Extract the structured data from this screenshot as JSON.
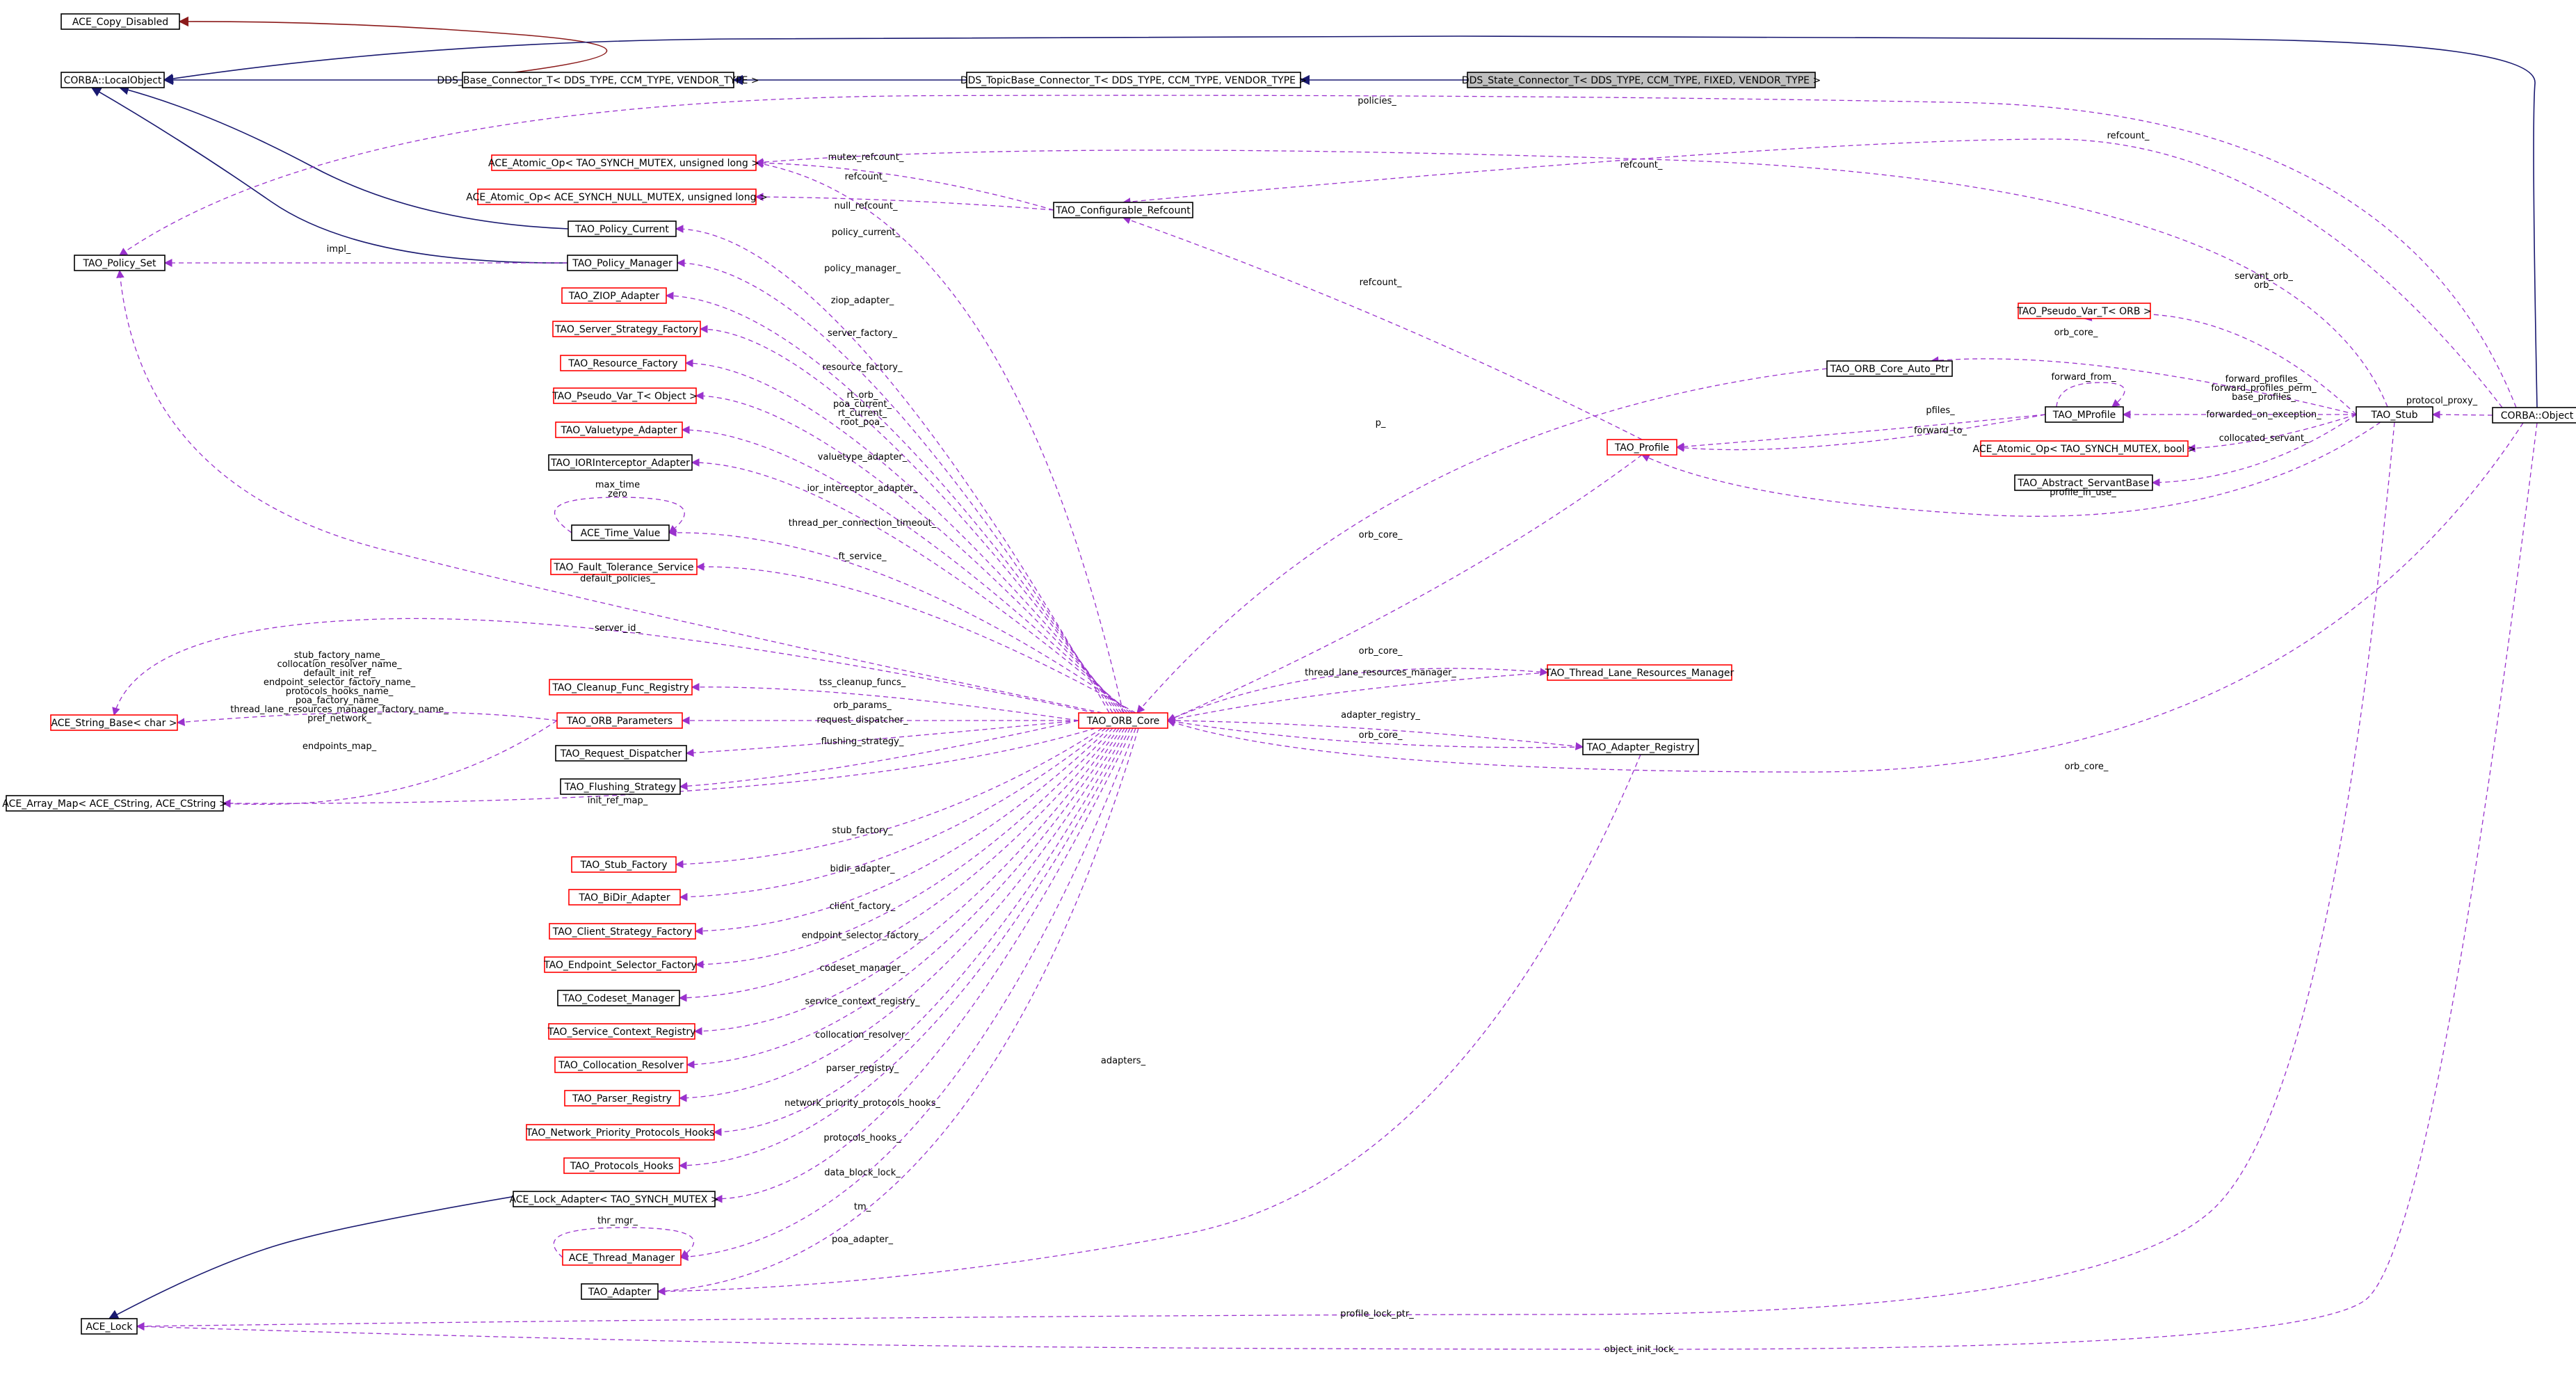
{
  "colors": {
    "usage_edge": "#9a32cd",
    "inherit_edge": "#191970",
    "private_edge": "#8b1a1a",
    "incomplete_node_border": "#ff0000",
    "root_node_fill": "#bfbfbf"
  },
  "nodes": [
    {
      "id": "ace_copy_disabled",
      "label": "ACE_Copy_Disabled",
      "style": "normal"
    },
    {
      "id": "corba_localobject",
      "label": "CORBA::LocalObject",
      "style": "normal"
    },
    {
      "id": "dds_base_connector",
      "label": "DDS_Base_Connector_T< DDS_TYPE, CCM_TYPE, VENDOR_TYPE >",
      "style": "normal"
    },
    {
      "id": "dds_topicbase_connector",
      "label": "DDS_TopicBase_Connector_T< DDS_TYPE, CCM_TYPE, VENDOR_TYPE >",
      "style": "normal"
    },
    {
      "id": "dds_state_connector",
      "label": "DDS_State_Connector_T< DDS_TYPE, CCM_TYPE, FIXED, VENDOR_TYPE >",
      "style": "root"
    },
    {
      "id": "ace_atomic_op_mutex_ulong",
      "label": "ACE_Atomic_Op< TAO_SYNCH_MUTEX, unsigned long >",
      "style": "red"
    },
    {
      "id": "ace_atomic_op_null_mutex",
      "label": "ACE_Atomic_Op< ACE_SYNCH_NULL_MUTEX, unsigned long >",
      "style": "red"
    },
    {
      "id": "tao_configurable_refcount",
      "label": "TAO_Configurable_Refcount",
      "style": "normal"
    },
    {
      "id": "tao_policy_current",
      "label": "TAO_Policy_Current",
      "style": "normal"
    },
    {
      "id": "tao_policy_set",
      "label": "TAO_Policy_Set",
      "style": "normal"
    },
    {
      "id": "tao_policy_manager",
      "label": "TAO_Policy_Manager",
      "style": "normal"
    },
    {
      "id": "tao_ziop_adapter",
      "label": "TAO_ZIOP_Adapter",
      "style": "red"
    },
    {
      "id": "tao_server_strategy_factory",
      "label": "TAO_Server_Strategy_Factory",
      "style": "red"
    },
    {
      "id": "tao_resource_factory",
      "label": "TAO_Resource_Factory",
      "style": "red"
    },
    {
      "id": "tao_pseudo_var_object",
      "label": "TAO_Pseudo_Var_T< Object >",
      "style": "red"
    },
    {
      "id": "tao_valuetype_adapter",
      "label": "TAO_Valuetype_Adapter",
      "style": "red"
    },
    {
      "id": "tao_iorinterceptor_adapter",
      "label": "TAO_IORInterceptor_Adapter",
      "style": "normal"
    },
    {
      "id": "ace_time_value",
      "label": "ACE_Time_Value",
      "style": "normal"
    },
    {
      "id": "tao_fault_tolerance_service",
      "label": "TAO_Fault_Tolerance_Service",
      "style": "red"
    },
    {
      "id": "ace_string_base",
      "label": "ACE_String_Base< char >",
      "style": "red"
    },
    {
      "id": "tao_cleanup_func_registry",
      "label": "TAO_Cleanup_Func_Registry",
      "style": "red"
    },
    {
      "id": "tao_orb_parameters",
      "label": "TAO_ORB_Parameters",
      "style": "red"
    },
    {
      "id": "tao_request_dispatcher",
      "label": "TAO_Request_Dispatcher",
      "style": "normal"
    },
    {
      "id": "tao_flushing_strategy",
      "label": "TAO_Flushing_Strategy",
      "style": "normal"
    },
    {
      "id": "ace_array_map",
      "label": "ACE_Array_Map< ACE_CString, ACE_CString >",
      "style": "normal"
    },
    {
      "id": "tao_stub_factory",
      "label": "TAO_Stub_Factory",
      "style": "red"
    },
    {
      "id": "tao_bidir_adapter",
      "label": "TAO_BiDir_Adapter",
      "style": "red"
    },
    {
      "id": "tao_client_strategy_factory",
      "label": "TAO_Client_Strategy_Factory",
      "style": "red"
    },
    {
      "id": "tao_endpoint_selector_factory",
      "label": "TAO_Endpoint_Selector_Factory",
      "style": "red"
    },
    {
      "id": "tao_codeset_manager",
      "label": "TAO_Codeset_Manager",
      "style": "normal"
    },
    {
      "id": "tao_service_context_registry",
      "label": "TAO_Service_Context_Registry",
      "style": "red"
    },
    {
      "id": "tao_collocation_resolver",
      "label": "TAO_Collocation_Resolver",
      "style": "red"
    },
    {
      "id": "tao_parser_registry",
      "label": "TAO_Parser_Registry",
      "style": "red"
    },
    {
      "id": "tao_network_priority_protocols_hooks",
      "label": "TAO_Network_Priority_Protocols_Hooks",
      "style": "red"
    },
    {
      "id": "tao_protocols_hooks",
      "label": "TAO_Protocols_Hooks",
      "style": "red"
    },
    {
      "id": "ace_lock_adapter",
      "label": "ACE_Lock_Adapter< TAO_SYNCH_MUTEX >",
      "style": "normal"
    },
    {
      "id": "ace_thread_manager",
      "label": "ACE_Thread_Manager",
      "style": "red"
    },
    {
      "id": "tao_adapter",
      "label": "TAO_Adapter",
      "style": "normal"
    },
    {
      "id": "ace_lock",
      "label": "ACE_Lock",
      "style": "normal"
    },
    {
      "id": "tao_orb_core",
      "label": "TAO_ORB_Core",
      "style": "red"
    },
    {
      "id": "tao_orb_core_auto_ptr",
      "label": "TAO_ORB_Core_Auto_Ptr",
      "style": "normal"
    },
    {
      "id": "tao_profile",
      "label": "TAO_Profile",
      "style": "red"
    },
    {
      "id": "tao_mprofile",
      "label": "TAO_MProfile",
      "style": "normal"
    },
    {
      "id": "tao_pseudo_var_orb",
      "label": "TAO_Pseudo_Var_T< ORB >",
      "style": "red"
    },
    {
      "id": "ace_atomic_op_mutex_bool",
      "label": "ACE_Atomic_Op< TAO_SYNCH_MUTEX, bool >",
      "style": "red"
    },
    {
      "id": "tao_abstract_servantbase",
      "label": "TAO_Abstract_ServantBase",
      "style": "normal"
    },
    {
      "id": "tao_stub",
      "label": "TAO_Stub",
      "style": "normal"
    },
    {
      "id": "corba_object",
      "label": "CORBA::Object",
      "style": "normal"
    },
    {
      "id": "tao_thread_lane_resources_manager",
      "label": "TAO_Thread_Lane_Resources_Manager",
      "style": "red"
    },
    {
      "id": "tao_adapter_registry",
      "label": "TAO_Adapter_Registry",
      "style": "normal"
    }
  ],
  "edge_labels": [
    {
      "id": "policies",
      "lines": [
        "policies_"
      ]
    },
    {
      "id": "refcount_corba",
      "lines": [
        "refcount_"
      ]
    },
    {
      "id": "refcount_stub",
      "lines": [
        "refcount_"
      ]
    },
    {
      "id": "mutex_refcount",
      "lines": [
        "mutex_refcount_"
      ]
    },
    {
      "id": "refcount_cfg",
      "lines": [
        "refcount_"
      ]
    },
    {
      "id": "null_refcount",
      "lines": [
        "null_refcount_"
      ]
    },
    {
      "id": "impl",
      "lines": [
        "impl_"
      ]
    },
    {
      "id": "policy_current",
      "lines": [
        "policy_current_"
      ]
    },
    {
      "id": "policy_manager",
      "lines": [
        "policy_manager_"
      ]
    },
    {
      "id": "ziop_adapter",
      "lines": [
        "ziop_adapter_"
      ]
    },
    {
      "id": "server_factory",
      "lines": [
        "server_factory_"
      ]
    },
    {
      "id": "resource_factory",
      "lines": [
        "resource_factory_"
      ]
    },
    {
      "id": "rt_orb_group",
      "lines": [
        "rt_orb_",
        "poa_current_",
        "rt_current_",
        "root_poa_"
      ]
    },
    {
      "id": "valuetype_adapter",
      "lines": [
        "valuetype_adapter_"
      ]
    },
    {
      "id": "ior_interceptor_adapter",
      "lines": [
        "ior_interceptor_adapter_"
      ]
    },
    {
      "id": "max_time_zero",
      "lines": [
        "max_time",
        "zero"
      ]
    },
    {
      "id": "thread_per_connection_timeout",
      "lines": [
        "thread_per_connection_timeout_"
      ]
    },
    {
      "id": "ft_service",
      "lines": [
        "ft_service_"
      ]
    },
    {
      "id": "default_policies",
      "lines": [
        "default_policies_"
      ]
    },
    {
      "id": "server_id",
      "lines": [
        "server_id_"
      ]
    },
    {
      "id": "orb_params_strings",
      "lines": [
        "stub_factory_name_",
        "collocation_resolver_name_",
        "default_init_ref_",
        "endpoint_selector_factory_name_",
        "protocols_hooks_name_",
        "poa_factory_name_",
        "thread_lane_resources_manager_factory_name_",
        "pref_network_"
      ]
    },
    {
      "id": "endpoints_map",
      "lines": [
        "endpoints_map_"
      ]
    },
    {
      "id": "tss_cleanup_funcs",
      "lines": [
        "tss_cleanup_funcs_"
      ]
    },
    {
      "id": "orb_params",
      "lines": [
        "orb_params_"
      ]
    },
    {
      "id": "request_dispatcher",
      "lines": [
        "request_dispatcher_"
      ]
    },
    {
      "id": "flushing_strategy",
      "lines": [
        "flushing_strategy_"
      ]
    },
    {
      "id": "init_ref_map",
      "lines": [
        "init_ref_map_"
      ]
    },
    {
      "id": "stub_factory",
      "lines": [
        "stub_factory_"
      ]
    },
    {
      "id": "bidir_adapter",
      "lines": [
        "bidir_adapter_"
      ]
    },
    {
      "id": "client_factory",
      "lines": [
        "client_factory_"
      ]
    },
    {
      "id": "endpoint_selector_factory",
      "lines": [
        "endpoint_selector_factory_"
      ]
    },
    {
      "id": "codeset_manager",
      "lines": [
        "codeset_manager_"
      ]
    },
    {
      "id": "service_context_registry",
      "lines": [
        "service_context_registry_"
      ]
    },
    {
      "id": "collocation_resolver",
      "lines": [
        "collocation_resolver_"
      ]
    },
    {
      "id": "parser_registry",
      "lines": [
        "parser_registry_"
      ]
    },
    {
      "id": "network_priority_protocols_hooks",
      "lines": [
        "network_priority_protocols_hooks_"
      ]
    },
    {
      "id": "protocols_hooks",
      "lines": [
        "protocols_hooks_"
      ]
    },
    {
      "id": "data_block_lock",
      "lines": [
        "data_block_lock_"
      ]
    },
    {
      "id": "thr_mgr",
      "lines": [
        "thr_mgr_"
      ]
    },
    {
      "id": "tm",
      "lines": [
        "tm_"
      ]
    },
    {
      "id": "poa_adapter",
      "lines": [
        "poa_adapter_"
      ]
    },
    {
      "id": "adapters",
      "lines": [
        "adapters_"
      ]
    },
    {
      "id": "profile_lock_ptr",
      "lines": [
        "profile_lock_ptr_"
      ]
    },
    {
      "id": "object_init_lock",
      "lines": [
        "object_init_lock_"
      ]
    },
    {
      "id": "refcount_profile",
      "lines": [
        "refcount_"
      ]
    },
    {
      "id": "p",
      "lines": [
        "p_"
      ]
    },
    {
      "id": "orb_core_profile",
      "lines": [
        "orb_core_"
      ]
    },
    {
      "id": "orb_core_stub",
      "lines": [
        "orb_core_"
      ]
    },
    {
      "id": "servant_orb_group",
      "lines": [
        "servant_orb_",
        "orb_"
      ]
    },
    {
      "id": "forward_from",
      "lines": [
        "forward_from_"
      ]
    },
    {
      "id": "pfiles",
      "lines": [
        "pfiles_"
      ]
    },
    {
      "id": "forward_to",
      "lines": [
        "forward_to_"
      ]
    },
    {
      "id": "forward_profiles_group",
      "lines": [
        "forward_profiles_",
        "forward_profiles_perm_",
        "base_profiles_"
      ]
    },
    {
      "id": "forwarded_on_exception",
      "lines": [
        "forwarded_on_exception_"
      ]
    },
    {
      "id": "collocated_servant",
      "lines": [
        "collocated_servant_"
      ]
    },
    {
      "id": "profile_in_use",
      "lines": [
        "profile_in_use_"
      ]
    },
    {
      "id": "protocol_proxy",
      "lines": [
        "protocol_proxy_"
      ]
    },
    {
      "id": "orb_core_tlrm",
      "lines": [
        "orb_core_"
      ]
    },
    {
      "id": "thread_lane_resources_manager",
      "lines": [
        "thread_lane_resources_manager_"
      ]
    },
    {
      "id": "adapter_registry",
      "lines": [
        "adapter_registry_"
      ]
    },
    {
      "id": "orb_core_registry",
      "lines": [
        "orb_core_"
      ]
    },
    {
      "id": "orb_core_object",
      "lines": [
        "orb_core_"
      ]
    }
  ]
}
